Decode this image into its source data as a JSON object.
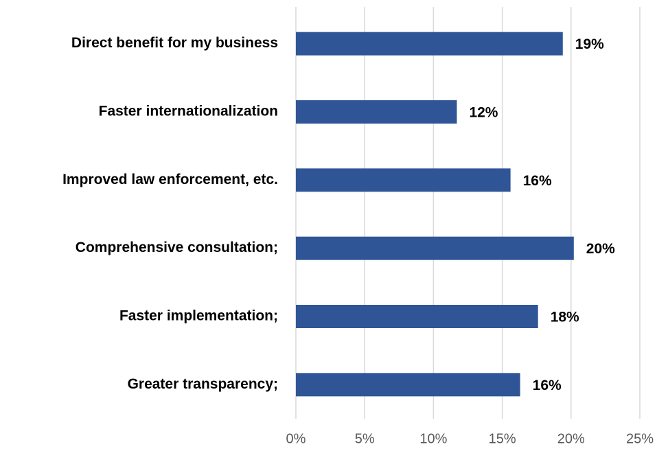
{
  "chart_data": {
    "type": "bar",
    "orientation": "horizontal",
    "categories": [
      "Direct benefit for my business",
      "Faster internationalization",
      "Improved law enforcement, etc.",
      "Comprehensive consultation;",
      "Faster implementation;",
      "Greater transparency;"
    ],
    "values": [
      19.4,
      11.7,
      15.6,
      20.2,
      17.6,
      16.3
    ],
    "value_labels": [
      "19%",
      "12%",
      "16%",
      "20%",
      "18%",
      "16%"
    ],
    "color": "#2f5597",
    "xlim": [
      0,
      25
    ],
    "xticks": [
      {
        "value": 0,
        "label": "0%"
      },
      {
        "value": 5,
        "label": "5%"
      },
      {
        "value": 10,
        "label": "10%"
      },
      {
        "value": 15,
        "label": "15%"
      },
      {
        "value": 20,
        "label": "20%"
      },
      {
        "value": 25,
        "label": "25%"
      }
    ],
    "grid": true
  }
}
